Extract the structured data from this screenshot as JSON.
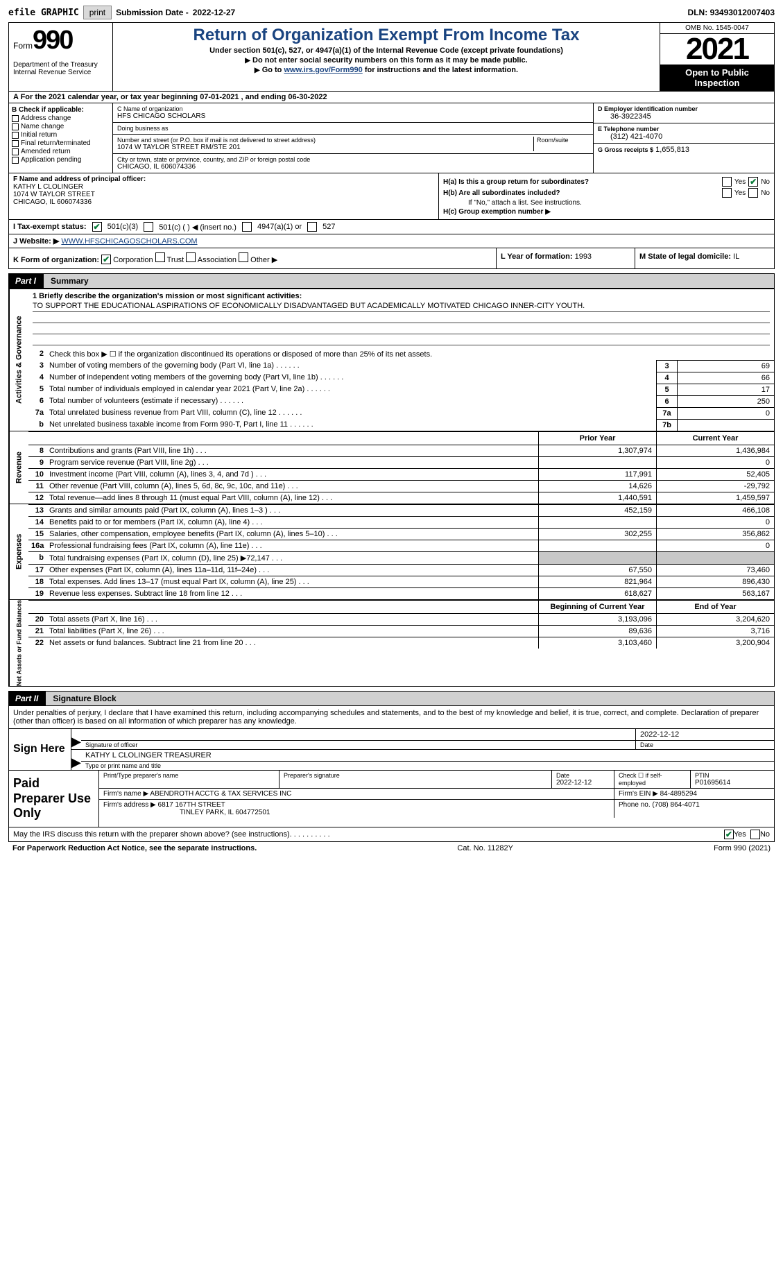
{
  "topbar": {
    "efile": "efile GRAPHIC",
    "print": "print",
    "subdate_label": "Submission Date -",
    "subdate": "2022-12-27",
    "dln_label": "DLN:",
    "dln": "93493012007403"
  },
  "header": {
    "form_label": "Form",
    "form_num": "990",
    "dept": "Department of the Treasury Internal Revenue Service",
    "title": "Return of Organization Exempt From Income Tax",
    "sub1": "Under section 501(c), 527, or 4947(a)(1) of the Internal Revenue Code (except private foundations)",
    "sub2a": "Do not enter social security numbers on this form as it may be made public.",
    "sub2b_pre": "Go to ",
    "sub2b_link": "www.irs.gov/Form990",
    "sub2b_post": " for instructions and the latest information.",
    "omb": "OMB No. 1545-0047",
    "year": "2021",
    "open": "Open to Public Inspection"
  },
  "rowA": "A For the 2021 calendar year, or tax year beginning 07-01-2021    , and ending 06-30-2022",
  "colB": {
    "label": "B Check if applicable:",
    "opts": [
      "Address change",
      "Name change",
      "Initial return",
      "Final return/terminated",
      "Amended return",
      "Application pending"
    ]
  },
  "colC": {
    "name_label": "C Name of organization",
    "name": "HFS CHICAGO SCHOLARS",
    "dba_label": "Doing business as",
    "dba": "",
    "addr_label": "Number and street (or P.O. box if mail is not delivered to street address)",
    "room_label": "Room/suite",
    "addr": "1074 W TAYLOR STREET RM/STE 201",
    "city_label": "City or town, state or province, country, and ZIP or foreign postal code",
    "city": "CHICAGO, IL  606074336"
  },
  "colD": {
    "ein_label": "D Employer identification number",
    "ein": "36-3922345",
    "phone_label": "E Telephone number",
    "phone": "(312) 421-4070",
    "gross_label": "G Gross receipts $",
    "gross": "1,655,813"
  },
  "colF": {
    "label": "F  Name and address of principal officer:",
    "name": "KATHY L CLOLINGER",
    "addr1": "1074 W TAYLOR STREET",
    "addr2": "CHICAGO, IL  606074336"
  },
  "colH": {
    "ha": "H(a)  Is this a group return for subordinates?",
    "hb": "H(b)  Are all subordinates included?",
    "hb_note": "If \"No,\" attach a list. See instructions.",
    "hc": "H(c)  Group exemption number ▶",
    "yes": "Yes",
    "no": "No"
  },
  "rowI": {
    "label": "I   Tax-exempt status:",
    "o1": "501(c)(3)",
    "o2": "501(c) (  ) ◀ (insert no.)",
    "o3": "4947(a)(1) or",
    "o4": "527"
  },
  "rowJ": {
    "label": "J   Website: ▶",
    "val": "WWW.HFSCHICAGOSCHOLARS.COM"
  },
  "rowK": {
    "label": "K Form of organization:",
    "corp": "Corporation",
    "trust": "Trust",
    "assoc": "Association",
    "other": "Other ▶",
    "yof_label": "L Year of formation:",
    "yof": "1993",
    "state_label": "M State of legal domicile:",
    "state": "IL"
  },
  "part1": {
    "num": "Part I",
    "title": "Summary"
  },
  "summary": {
    "tab1": "Activities & Governance",
    "tab2": "Revenue",
    "tab3": "Expenses",
    "tab4": "Net Assets or Fund Balances",
    "l1_label": "1   Briefly describe the organization's mission or most significant activities:",
    "l1_text": "TO SUPPORT THE EDUCATIONAL ASPIRATIONS OF ECONOMICALLY DISADVANTAGED BUT ACADEMICALLY MOTIVATED CHICAGO INNER-CITY YOUTH.",
    "l2": "Check this box ▶ ☐ if the organization discontinued its operations or disposed of more than 25% of its net assets.",
    "lines": [
      {
        "n": "3",
        "t": "Number of voting members of the governing body (Part VI, line 1a)",
        "box": "3",
        "v": "69"
      },
      {
        "n": "4",
        "t": "Number of independent voting members of the governing body (Part VI, line 1b)",
        "box": "4",
        "v": "66"
      },
      {
        "n": "5",
        "t": "Total number of individuals employed in calendar year 2021 (Part V, line 2a)",
        "box": "5",
        "v": "17"
      },
      {
        "n": "6",
        "t": "Total number of volunteers (estimate if necessary)",
        "box": "6",
        "v": "250"
      },
      {
        "n": "7a",
        "t": "Total unrelated business revenue from Part VIII, column (C), line 12",
        "box": "7a",
        "v": "0"
      },
      {
        "n": "b",
        "t": "Net unrelated business taxable income from Form 990-T, Part I, line 11",
        "box": "7b",
        "v": ""
      }
    ],
    "prior_label": "Prior Year",
    "current_label": "Current Year",
    "rev": [
      {
        "n": "8",
        "t": "Contributions and grants (Part VIII, line 1h)",
        "p": "1,307,974",
        "c": "1,436,984"
      },
      {
        "n": "9",
        "t": "Program service revenue (Part VIII, line 2g)",
        "p": "",
        "c": "0"
      },
      {
        "n": "10",
        "t": "Investment income (Part VIII, column (A), lines 3, 4, and 7d )",
        "p": "117,991",
        "c": "52,405"
      },
      {
        "n": "11",
        "t": "Other revenue (Part VIII, column (A), lines 5, 6d, 8c, 9c, 10c, and 11e)",
        "p": "14,626",
        "c": "-29,792"
      },
      {
        "n": "12",
        "t": "Total revenue—add lines 8 through 11 (must equal Part VIII, column (A), line 12)",
        "p": "1,440,591",
        "c": "1,459,597"
      }
    ],
    "exp": [
      {
        "n": "13",
        "t": "Grants and similar amounts paid (Part IX, column (A), lines 1–3 )",
        "p": "452,159",
        "c": "466,108"
      },
      {
        "n": "14",
        "t": "Benefits paid to or for members (Part IX, column (A), line 4)",
        "p": "",
        "c": "0"
      },
      {
        "n": "15",
        "t": "Salaries, other compensation, employee benefits (Part IX, column (A), lines 5–10)",
        "p": "302,255",
        "c": "356,862"
      },
      {
        "n": "16a",
        "t": "Professional fundraising fees (Part IX, column (A), line 11e)",
        "p": "",
        "c": "0"
      },
      {
        "n": "b",
        "t": "Total fundraising expenses (Part IX, column (D), line 25) ▶72,147",
        "p": "shaded",
        "c": "shaded"
      },
      {
        "n": "17",
        "t": "Other expenses (Part IX, column (A), lines 11a–11d, 11f–24e)",
        "p": "67,550",
        "c": "73,460"
      },
      {
        "n": "18",
        "t": "Total expenses. Add lines 13–17 (must equal Part IX, column (A), line 25)",
        "p": "821,964",
        "c": "896,430"
      },
      {
        "n": "19",
        "t": "Revenue less expenses. Subtract line 18 from line 12",
        "p": "618,627",
        "c": "563,167"
      }
    ],
    "beg_label": "Beginning of Current Year",
    "end_label": "End of Year",
    "net": [
      {
        "n": "20",
        "t": "Total assets (Part X, line 16)",
        "p": "3,193,096",
        "c": "3,204,620"
      },
      {
        "n": "21",
        "t": "Total liabilities (Part X, line 26)",
        "p": "89,636",
        "c": "3,716"
      },
      {
        "n": "22",
        "t": "Net assets or fund balances. Subtract line 21 from line 20",
        "p": "3,103,460",
        "c": "3,200,904"
      }
    ]
  },
  "part2": {
    "num": "Part II",
    "title": "Signature Block"
  },
  "sig_intro": "Under penalties of perjury, I declare that I have examined this return, including accompanying schedules and statements, and to the best of my knowledge and belief, it is true, correct, and complete. Declaration of preparer (other than officer) is based on all information of which preparer has any knowledge.",
  "sign": {
    "title": "Sign Here",
    "sig_label": "Signature of officer",
    "date_label": "Date",
    "date": "2022-12-12",
    "name": "KATHY L CLOLINGER  TREASURER",
    "name_label": "Type or print name and title"
  },
  "prep": {
    "title": "Paid Preparer Use Only",
    "pname_label": "Print/Type preparer's name",
    "psig_label": "Preparer's signature",
    "pdate_label": "Date",
    "pdate": "2022-12-12",
    "check_label": "Check ☐ if self-employed",
    "ptin_label": "PTIN",
    "ptin": "P01695614",
    "firm_name_label": "Firm's name      ▶",
    "firm_name": "ABENDROTH ACCTG & TAX SERVICES INC",
    "firm_ein_label": "Firm's EIN ▶",
    "firm_ein": "84-4895294",
    "firm_addr_label": "Firm's address ▶",
    "firm_addr1": "6817 167TH STREET",
    "firm_addr2": "TINLEY PARK, IL  604772501",
    "phone_label": "Phone no.",
    "phone": "(708) 864-4071"
  },
  "discuss": {
    "text": "May the IRS discuss this return with the preparer shown above? (see instructions)",
    "yes": "Yes",
    "no": "No"
  },
  "footer": {
    "left": "For Paperwork Reduction Act Notice, see the separate instructions.",
    "center": "Cat. No. 11282Y",
    "right": "Form 990 (2021)"
  }
}
